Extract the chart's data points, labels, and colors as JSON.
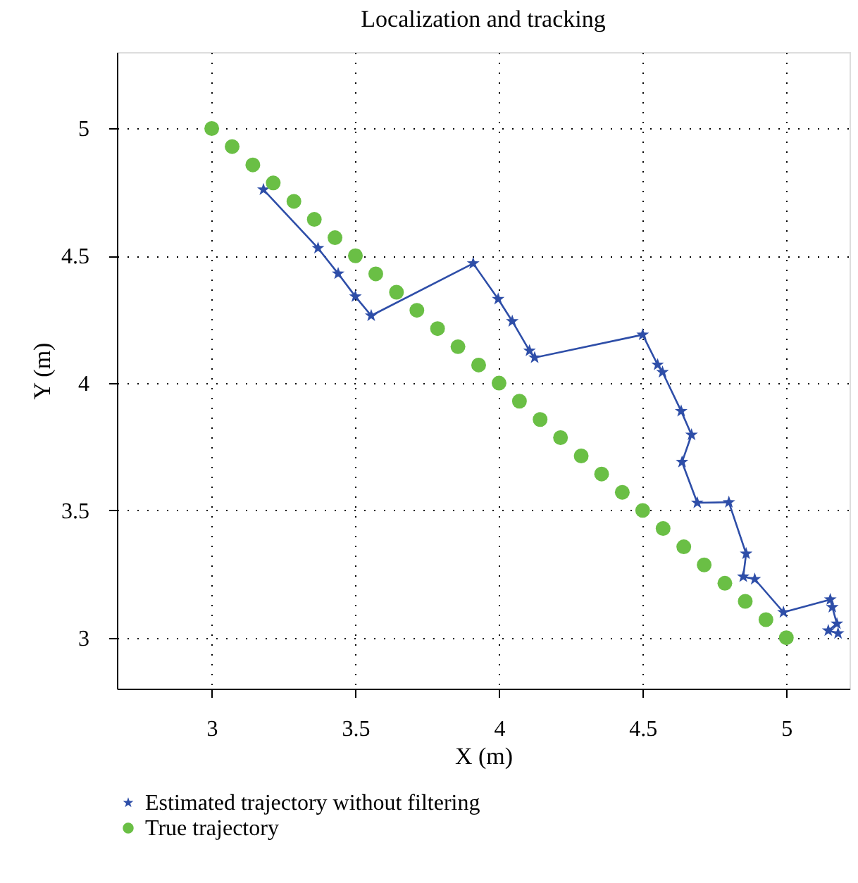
{
  "chart_data": {
    "type": "line",
    "title": "Localization and tracking",
    "xlabel": "X (m)",
    "ylabel": "Y (m)",
    "xlim": [
      2.67,
      5.22
    ],
    "ylim": [
      2.8,
      5.3
    ],
    "xticks": [
      3,
      3.5,
      4,
      4.5,
      5
    ],
    "yticks": [
      3,
      3.5,
      4,
      4.5,
      5
    ],
    "grid": true,
    "legend": "bottom",
    "series": [
      {
        "name": "Estimated trajectory without filtering",
        "marker": "star",
        "line_style": "solid",
        "color": "#2e4ea8",
        "x": [
          3.18,
          3.37,
          3.44,
          3.5,
          3.555,
          3.91,
          3.997,
          4.046,
          4.106,
          4.124,
          4.5,
          4.552,
          4.569,
          4.634,
          4.67,
          4.637,
          4.69,
          4.8,
          4.86,
          4.85,
          4.89,
          4.99,
          5.153,
          5.16,
          5.176,
          5.146,
          5.18
        ],
        "values": [
          4.76,
          4.53,
          4.43,
          4.34,
          4.265,
          4.47,
          4.33,
          4.243,
          4.127,
          4.1,
          4.19,
          4.072,
          4.043,
          3.89,
          3.797,
          3.69,
          3.53,
          3.532,
          3.33,
          3.24,
          3.23,
          3.1,
          3.15,
          3.12,
          3.055,
          3.028,
          3.017
        ]
      },
      {
        "name": "True trajectory",
        "type": "scatter",
        "marker": "circle",
        "color": "#6abf45",
        "x": [
          3,
          3.071,
          3.143,
          3.214,
          3.286,
          3.357,
          3.429,
          3.5,
          3.571,
          3.643,
          3.714,
          3.786,
          3.857,
          3.929,
          4,
          4.071,
          4.143,
          4.214,
          4.286,
          4.357,
          4.429,
          4.5,
          4.571,
          4.643,
          4.714,
          4.786,
          4.857,
          4.929,
          5
        ],
        "values": [
          5,
          4.929,
          4.857,
          4.786,
          4.714,
          4.643,
          4.571,
          4.5,
          4.429,
          4.357,
          4.286,
          4.214,
          4.143,
          4.071,
          4,
          3.929,
          3.857,
          3.786,
          3.714,
          3.643,
          3.571,
          3.5,
          3.429,
          3.357,
          3.286,
          3.214,
          3.143,
          3.071,
          3
        ]
      }
    ]
  }
}
